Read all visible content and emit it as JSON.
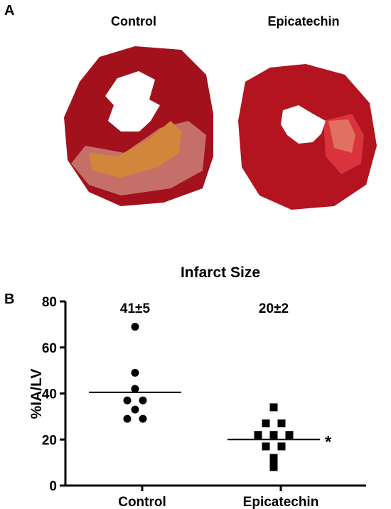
{
  "panel_a": {
    "letter": "A",
    "left_title": "Control",
    "right_title": "Epicatechin",
    "colors": {
      "tissue_dark": "#a3111c",
      "tissue_mid": "#c9192a",
      "border_zone": "#d9646a",
      "infarct": "#d2863c"
    }
  },
  "panel_b": {
    "letter": "B"
  },
  "chart_data": {
    "type": "scatter",
    "title": "Infarct Size",
    "xlabel": "",
    "ylabel": "%IA/LV",
    "ylim": [
      0,
      80
    ],
    "yticks": [
      0,
      20,
      40,
      60,
      80
    ],
    "categories": [
      "Control",
      "Epicatechin"
    ],
    "series": [
      {
        "category": "Control",
        "marker": "circle",
        "values": [
          69,
          49,
          42,
          37,
          37,
          33,
          29,
          29
        ],
        "mean": 40.5,
        "summary_label": "41±5",
        "annotation": ""
      },
      {
        "category": "Epicatechin",
        "marker": "square",
        "values": [
          34,
          27,
          27,
          22,
          22,
          22,
          17,
          17,
          12,
          9,
          8
        ],
        "mean": 20,
        "summary_label": "20±2",
        "annotation": "*"
      }
    ],
    "grid": false,
    "legend": "none"
  }
}
